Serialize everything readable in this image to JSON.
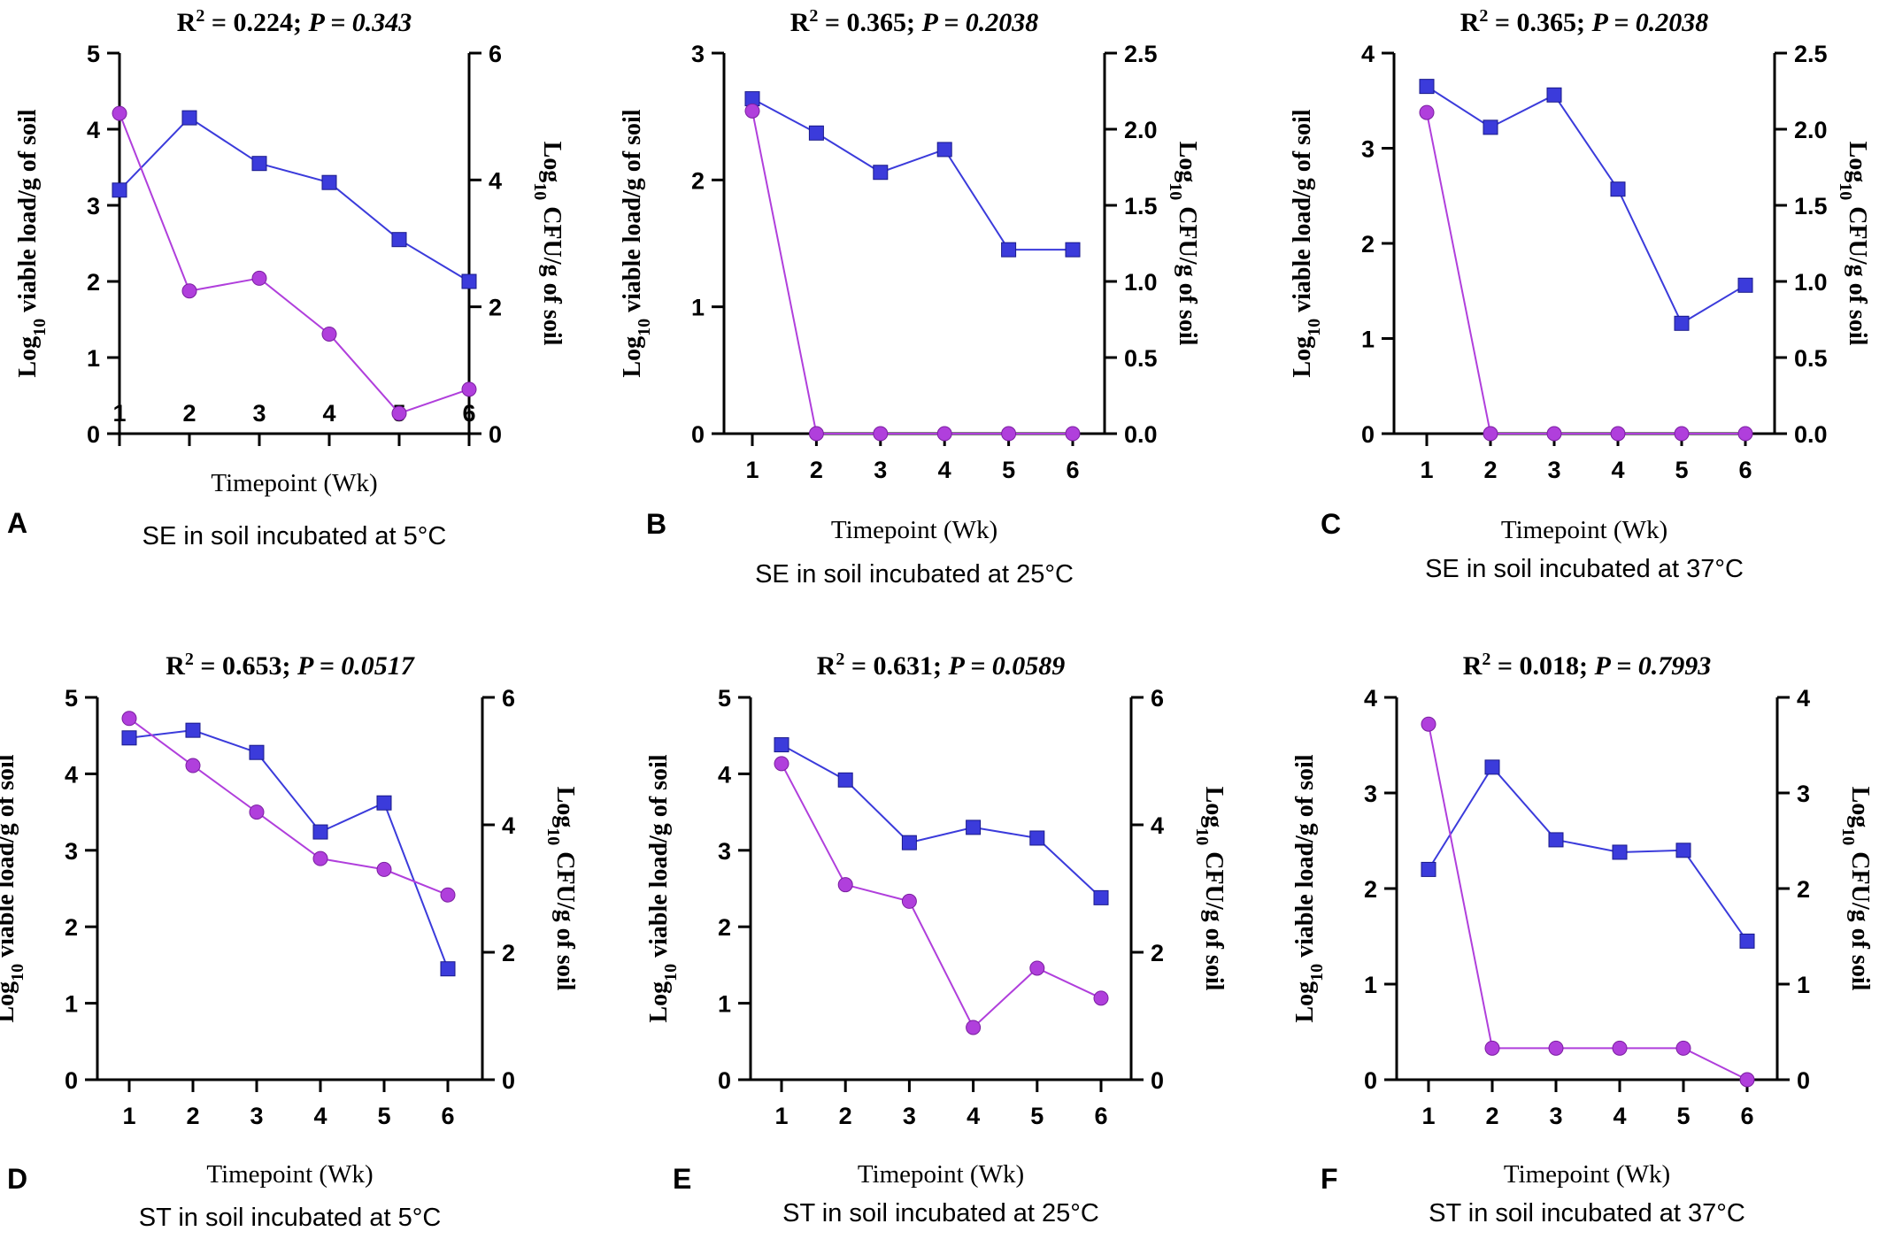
{
  "colors": {
    "viable": "#3b3bdb",
    "cfu": "#b03fdc",
    "axis": "#000000"
  },
  "chart_data": [
    {
      "panel": "A",
      "type": "line",
      "stat": {
        "r2": "0.224",
        "p": "0.343"
      },
      "title": "R2 = 0.224; P = 0.343",
      "xlabel": "Timepoint (Wk)",
      "ylabel_left": "Log10 viable load/g of soil",
      "ylabel_right": "Log10 CFU/g of soil",
      "caption": "SE in soil incubated at 5°C",
      "x": [
        1,
        2,
        3,
        4,
        5,
        6
      ],
      "x_ticks_inside": true,
      "y_left": {
        "min": 0,
        "max": 5,
        "ticks": [
          "0",
          "1",
          "2",
          "3",
          "4",
          "5"
        ]
      },
      "y_right": {
        "min": 0,
        "max": 6,
        "ticks": [
          "0",
          "2",
          "4",
          "6"
        ]
      },
      "series": [
        {
          "name": "Log10 viable load/g of soil",
          "axis": "left",
          "marker": "square",
          "values": [
            3.2,
            4.15,
            3.55,
            3.3,
            2.55,
            2.0
          ]
        },
        {
          "name": "Log10 CFU/g of soil",
          "axis": "right",
          "marker": "circle",
          "values": [
            5.05,
            2.25,
            2.45,
            1.57,
            0.32,
            0.7
          ]
        }
      ]
    },
    {
      "panel": "B",
      "type": "line",
      "stat": {
        "r2": "0.365",
        "p": "0.2038"
      },
      "title": "R2 = 0.365; P = 0.2038",
      "xlabel": "Timepoint (Wk)",
      "ylabel_left": "Log10 viable load/g of soil",
      "ylabel_right": "Log10 CFU/g of soil",
      "caption": "SE in soil incubated at 25°C",
      "x": [
        1,
        2,
        3,
        4,
        5,
        6
      ],
      "x_ticks_inside": false,
      "y_left": {
        "min": 0,
        "max": 3,
        "ticks": [
          "0",
          "1",
          "2",
          "3"
        ]
      },
      "y_right": {
        "min": 0,
        "max": 2.5,
        "ticks": [
          "0.0",
          "0.5",
          "1.0",
          "1.5",
          "2.0",
          "2.5"
        ]
      },
      "series": [
        {
          "name": "Log10 viable load/g of soil",
          "axis": "left",
          "marker": "square",
          "values": [
            2.64,
            2.37,
            2.06,
            2.24,
            1.45,
            1.45
          ]
        },
        {
          "name": "Log10 CFU/g of soil",
          "axis": "right",
          "marker": "circle",
          "values": [
            2.12,
            0,
            0,
            0,
            0,
            0
          ]
        }
      ]
    },
    {
      "panel": "C",
      "type": "line",
      "stat": {
        "r2": "0.365",
        "p": "0.2038"
      },
      "title": "R2 = 0.365; P = 0.2038",
      "xlabel": "Timepoint (Wk)",
      "ylabel_left": "Log10 viable load/g of soil",
      "ylabel_right": "Log10 CFU/g of soil",
      "caption": "SE in soil incubated at 37°C",
      "x": [
        1,
        2,
        3,
        4,
        5,
        6
      ],
      "x_ticks_inside": false,
      "y_left": {
        "min": 0,
        "max": 4,
        "ticks": [
          "0",
          "1",
          "2",
          "3",
          "4"
        ]
      },
      "y_right": {
        "min": 0,
        "max": 2.5,
        "ticks": [
          "0.0",
          "0.5",
          "1.0",
          "1.5",
          "2.0",
          "2.5"
        ]
      },
      "series": [
        {
          "name": "Log10 viable load/g of soil",
          "axis": "left",
          "marker": "square",
          "values": [
            3.65,
            3.22,
            3.56,
            2.57,
            1.16,
            1.56
          ]
        },
        {
          "name": "Log10 CFU/g of soil",
          "axis": "right",
          "marker": "circle",
          "values": [
            2.11,
            0,
            0,
            0,
            0,
            0
          ]
        }
      ]
    },
    {
      "panel": "D",
      "type": "line",
      "stat": {
        "r2": "0.653",
        "p": "0.0517"
      },
      "title": "R2 = 0.653; P = 0.0517",
      "xlabel": "Timepoint (Wk)",
      "ylabel_left": "Log10 viable load/g of soil",
      "ylabel_right": "Log10 CFU/g of soil",
      "caption": "ST in soil incubated at 5°C",
      "x": [
        1,
        2,
        3,
        4,
        5,
        6
      ],
      "x_ticks_inside": false,
      "y_left": {
        "min": 0,
        "max": 5,
        "ticks": [
          "0",
          "1",
          "2",
          "3",
          "4",
          "5"
        ]
      },
      "y_right": {
        "min": 0,
        "max": 6,
        "ticks": [
          "0",
          "2",
          "4",
          "6"
        ]
      },
      "series": [
        {
          "name": "Log10 viable load/g of soil",
          "axis": "left",
          "marker": "square",
          "values": [
            4.47,
            4.57,
            4.28,
            3.24,
            3.62,
            1.45
          ]
        },
        {
          "name": "Log10 CFU/g of soil",
          "axis": "right",
          "marker": "circle",
          "values": [
            5.67,
            4.93,
            4.2,
            3.47,
            3.3,
            2.9
          ]
        }
      ]
    },
    {
      "panel": "E",
      "type": "line",
      "stat": {
        "r2": "0.631",
        "p": "0.0589"
      },
      "title": "R2 = 0.631; P = 0.0589",
      "xlabel": "Timepoint (Wk)",
      "ylabel_left": "Log10 viable load/g of soil",
      "ylabel_right": "Log10 CFU/g of soil",
      "caption": "ST in soil incubated at 25°C",
      "x": [
        1,
        2,
        3,
        4,
        5,
        6
      ],
      "x_ticks_inside": false,
      "y_left": {
        "min": 0,
        "max": 5,
        "ticks": [
          "0",
          "1",
          "2",
          "3",
          "4",
          "5"
        ]
      },
      "y_right": {
        "min": 0,
        "max": 6,
        "ticks": [
          "0",
          "2",
          "4",
          "6"
        ]
      },
      "series": [
        {
          "name": "Log10 viable load/g of soil",
          "axis": "left",
          "marker": "square",
          "values": [
            4.38,
            3.92,
            3.1,
            3.3,
            3.16,
            2.38
          ]
        },
        {
          "name": "Log10 CFU/g of soil",
          "axis": "right",
          "marker": "circle",
          "values": [
            4.96,
            3.06,
            2.8,
            0.82,
            1.75,
            1.28
          ]
        }
      ]
    },
    {
      "panel": "F",
      "type": "line",
      "stat": {
        "r2": "0.018",
        "p": "0.7993"
      },
      "title": "R2 = 0.018; P = 0.7993",
      "xlabel": "Timepoint (Wk)",
      "ylabel_left": "Log10 viable load/g of soil",
      "ylabel_right": "Log10 CFU/g of soil",
      "caption": "ST in soil incubated at 37°C",
      "x": [
        1,
        2,
        3,
        4,
        5,
        6
      ],
      "x_ticks_inside": false,
      "y_left": {
        "min": 0,
        "max": 4,
        "ticks": [
          "0",
          "1",
          "2",
          "3",
          "4"
        ]
      },
      "y_right": {
        "min": 0,
        "max": 4,
        "ticks": [
          "0",
          "1",
          "2",
          "3",
          "4"
        ]
      },
      "series": [
        {
          "name": "Log10 viable load/g of soil",
          "axis": "left",
          "marker": "square",
          "values": [
            2.2,
            3.27,
            2.51,
            2.38,
            2.4,
            1.45
          ]
        },
        {
          "name": "Log10 CFU/g of soil",
          "axis": "right",
          "marker": "circle",
          "values": [
            3.72,
            0.33,
            0.33,
            0.33,
            0.33,
            0
          ]
        }
      ]
    }
  ]
}
